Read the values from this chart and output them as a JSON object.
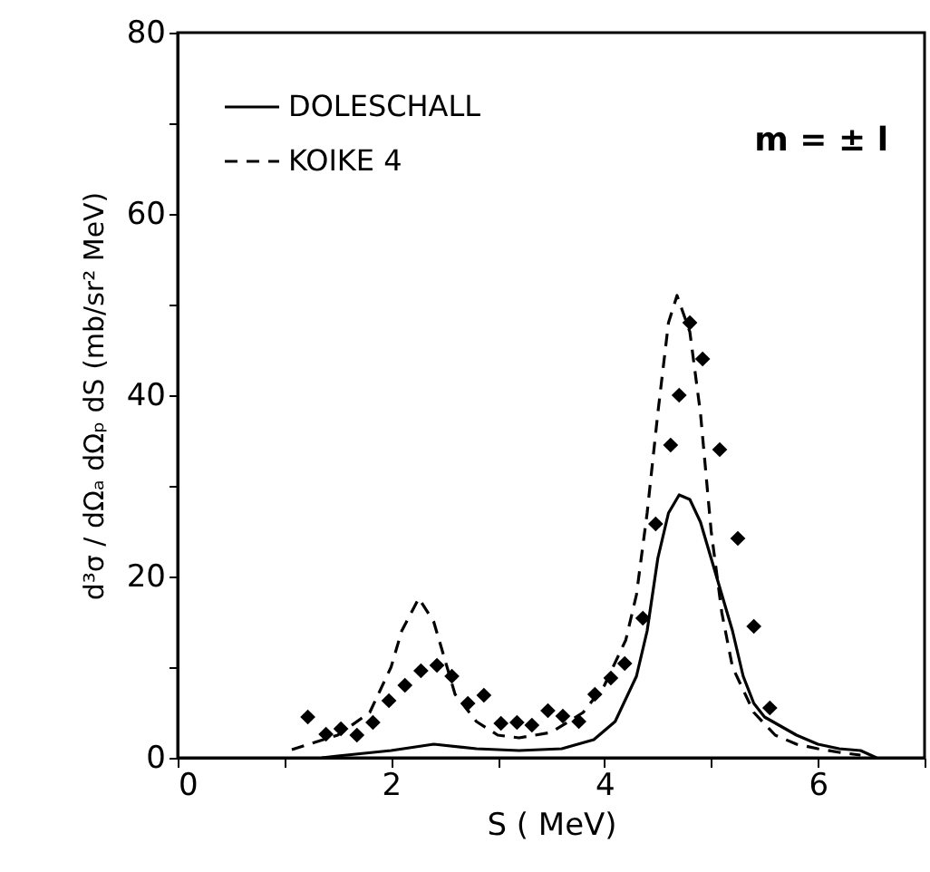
{
  "chart_data": {
    "type": "line",
    "xlabel": "S ( MeV)",
    "ylabel": "d³σ / dΩₐ dΩₚ dS   (mb/sr² MeV)",
    "annotations": [
      "m = ± l"
    ],
    "xlim": [
      0,
      7
    ],
    "ylim": [
      0,
      80
    ],
    "xticks": [
      0,
      {
        "value": 1,
        "label": null
      },
      2,
      {
        "value": 3,
        "label": null
      },
      4,
      {
        "value": 5,
        "label": null
      },
      6,
      {
        "value": 7,
        "label": null
      }
    ],
    "yticks": [
      0,
      {
        "value": 10,
        "label": null
      },
      20,
      {
        "value": 30,
        "label": null
      },
      40,
      {
        "value": 50,
        "label": null
      },
      60,
      {
        "value": 70,
        "label": null
      },
      80
    ],
    "grid": false,
    "legend": "top left",
    "series": [
      {
        "name": "DOLESCHALL",
        "line_style": "solid",
        "marker": "none",
        "color": "#000000",
        "x": [
          1.35,
          1.5,
          2.0,
          2.4,
          2.8,
          3.2,
          3.6,
          3.9,
          4.1,
          4.3,
          4.4,
          4.5,
          4.6,
          4.7,
          4.8,
          4.9,
          5.0,
          5.1,
          5.2,
          5.3,
          5.4,
          5.5,
          5.8,
          6.0,
          6.2,
          6.4,
          6.55
        ],
        "values": [
          0,
          0.2,
          0.8,
          1.5,
          1.0,
          0.8,
          1.0,
          2,
          4,
          9,
          14,
          22,
          27,
          29,
          28.5,
          26,
          22,
          18,
          14,
          9,
          6,
          4.5,
          2.5,
          1.5,
          1,
          0.8,
          0
        ]
      },
      {
        "name": "KOIKE 4",
        "line_style": "dashed",
        "marker": "none",
        "color": "#000000",
        "x": [
          1.07,
          1.5,
          1.8,
          2.0,
          2.1,
          2.26,
          2.4,
          2.5,
          2.6,
          2.8,
          3.0,
          3.2,
          3.5,
          3.8,
          4.0,
          4.2,
          4.3,
          4.4,
          4.5,
          4.6,
          4.68,
          4.8,
          4.9,
          5.0,
          5.1,
          5.2,
          5.4,
          5.6,
          5.8,
          6.0,
          6.2,
          6.4
        ],
        "values": [
          0.9,
          2.5,
          5,
          10,
          14,
          17.6,
          15,
          11,
          7,
          4,
          2.5,
          2.2,
          2.8,
          5,
          8,
          13,
          18,
          27,
          38,
          48,
          51,
          47,
          38,
          25,
          16,
          10,
          5,
          2.5,
          1.5,
          1,
          0.6,
          0.3
        ]
      },
      {
        "type": "scatter",
        "marker": "diamond",
        "color": "#000000",
        "x": [
          1.22,
          1.39,
          1.53,
          1.68,
          1.83,
          1.98,
          2.13,
          2.28,
          2.43,
          2.57,
          2.72,
          2.87,
          3.03,
          3.18,
          3.32,
          3.47,
          3.61,
          3.76,
          3.91,
          4.06,
          4.19,
          4.36,
          4.48,
          4.62,
          4.7,
          4.8,
          4.92,
          5.08,
          5.25,
          5.4,
          5.55
        ],
        "values": [
          4.5,
          2.6,
          3.2,
          2.5,
          3.9,
          6.3,
          8.0,
          9.6,
          10.2,
          9.0,
          6.0,
          6.9,
          3.8,
          3.9,
          3.6,
          5.2,
          4.6,
          4.0,
          7.0,
          8.8,
          10.4,
          15.4,
          25.8,
          34.5,
          40,
          48,
          44,
          34,
          24.2,
          14.5,
          5.5
        ]
      }
    ]
  }
}
